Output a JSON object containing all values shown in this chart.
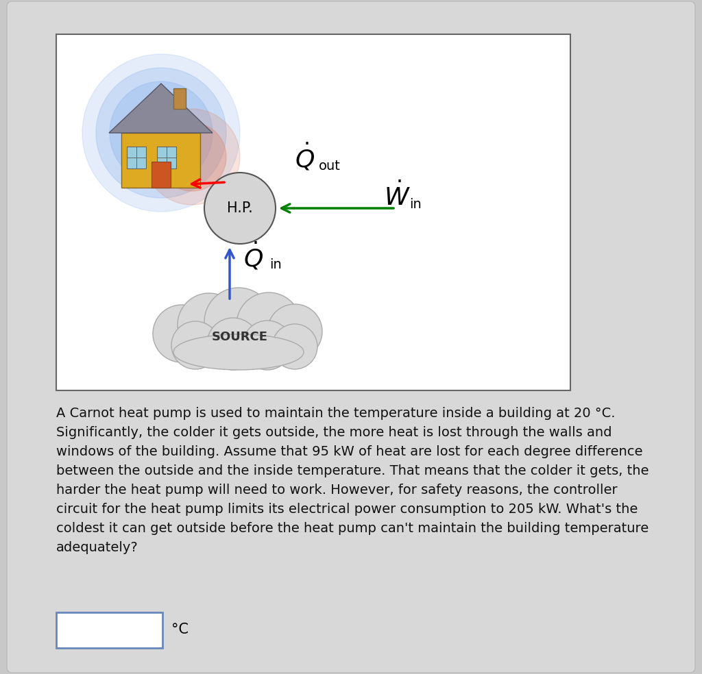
{
  "bg_outer": "#c8c8c8",
  "bg_card": "#e0e0e0",
  "diagram_bg": "#ffffff",
  "text_color": "#111111",
  "problem_text": "A Carnot heat pump is used to maintain the temperature inside a building at 20 °C.\nSignificantly, the colder it gets outside, the more heat is lost through the walls and\nwindows of the building. Assume that 95 kW of heat are lost for each degree difference\nbetween the outside and the inside temperature. That means that the colder it gets, the\nharder the heat pump will need to work. However, for safety reasons, the controller\ncircuit for the heat pump limits its electrical power consumption to 205 kW. What's the\ncoldest it can get outside before the heat pump can't maintain the building temperature\nadequately?",
  "answer_unit": "°C",
  "hp_label": "H.P.",
  "source_label": "SOURCE",
  "glow_blue_color": "#99bbee",
  "glow_red_color": "#dd7755",
  "house_body_color": "#ddaa22",
  "roof_color": "#888899",
  "window_color": "#99ccdd",
  "cloud_color": "#d8d8d8",
  "cloud_edge": "#aaaaaa"
}
